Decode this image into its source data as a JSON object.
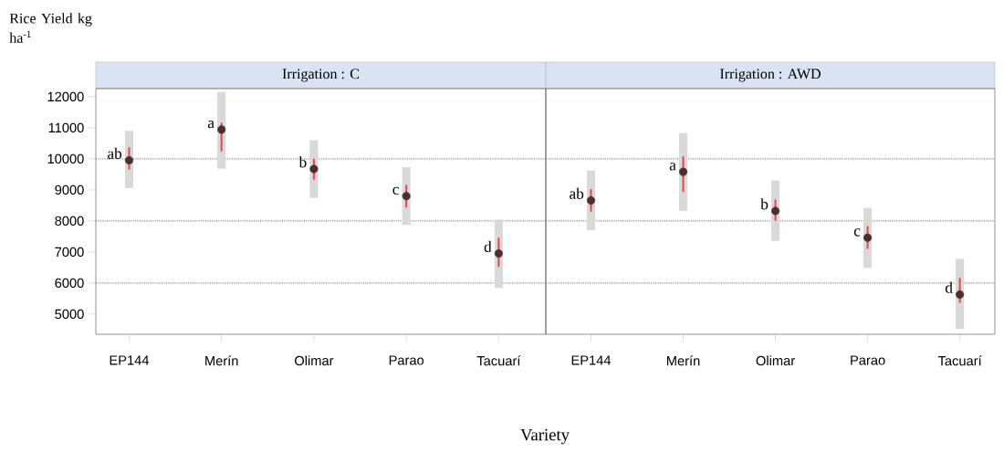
{
  "chart_data": [
    {
      "type": "scatter",
      "title": "Irrigation : C",
      "ylabel": "Rice Yield kg ha$^{-1}$",
      "xlabel": "Variety",
      "categories": [
        "EP144",
        "Merín",
        "Olimar",
        "Parao",
        "Tacuarí"
      ],
      "ylim": [
        4350,
        12260
      ],
      "yticks": [
        5000,
        6000,
        7000,
        8000,
        9000,
        10000,
        11000,
        12000
      ],
      "grid": false,
      "marker": "circle",
      "ref_lines": [
        {
          "axis": "y",
          "value": 6000,
          "color": "#808080",
          "line_style": "dotted"
        },
        {
          "axis": "y",
          "value": 8000,
          "color": "#808080",
          "line_style": "dotted"
        },
        {
          "axis": "y",
          "value": 10000,
          "color": "#808080",
          "line_style": "dotted"
        }
      ],
      "series": [
        {
          "type": "bar",
          "color": "#d9d9d9",
          "base": [
            9060,
            9680,
            8740,
            7870,
            5840
          ],
          "values": [
            1840,
            2470,
            1860,
            1860,
            2200
          ]
        },
        {
          "color": "#4a3030",
          "values": [
            9950,
            10940,
            9670,
            8800,
            6950
          ],
          "errors": [
            [
              9650,
              10370
            ],
            [
              10240,
              11160
            ],
            [
              9330,
              10000
            ],
            [
              8430,
              9160
            ],
            [
              6520,
              7460
            ]
          ],
          "value_labels": [
            "ab",
            "a",
            "b",
            "c",
            "d"
          ]
        }
      ]
    },
    {
      "type": "scatter",
      "title": "Irrigation : AWD",
      "tick_labels": "x",
      "categories": [
        "EP144",
        "Merín",
        "Olimar",
        "Parao",
        "Tacuarí"
      ],
      "ylim": [
        4350,
        12260
      ],
      "yticks": [
        5000,
        6000,
        7000,
        8000,
        9000,
        10000,
        11000,
        12000
      ],
      "grid": false,
      "marker": "circle",
      "ref_lines": [
        {
          "axis": "y",
          "value": 6000,
          "color": "#808080",
          "line_style": "dotted"
        },
        {
          "axis": "y",
          "value": 8000,
          "color": "#808080",
          "line_style": "dotted"
        },
        {
          "axis": "y",
          "value": 10000,
          "color": "#808080",
          "line_style": "dotted"
        }
      ],
      "series": [
        {
          "type": "bar",
          "color": "#d9d9d9",
          "base": [
            7700,
            8320,
            7360,
            6490,
            4520
          ],
          "values": [
            1920,
            2510,
            1940,
            1930,
            2260
          ]
        },
        {
          "color": "#4a3030",
          "values": [
            8660,
            9580,
            8320,
            7460,
            5630
          ],
          "errors": [
            [
              8300,
              9020
            ],
            [
              8930,
              10080
            ],
            [
              8000,
              8690
            ],
            [
              7100,
              7830
            ],
            [
              5360,
              6170
            ]
          ],
          "value_labels": [
            "ab",
            "a",
            "b",
            "c",
            "d"
          ]
        }
      ]
    }
  ]
}
